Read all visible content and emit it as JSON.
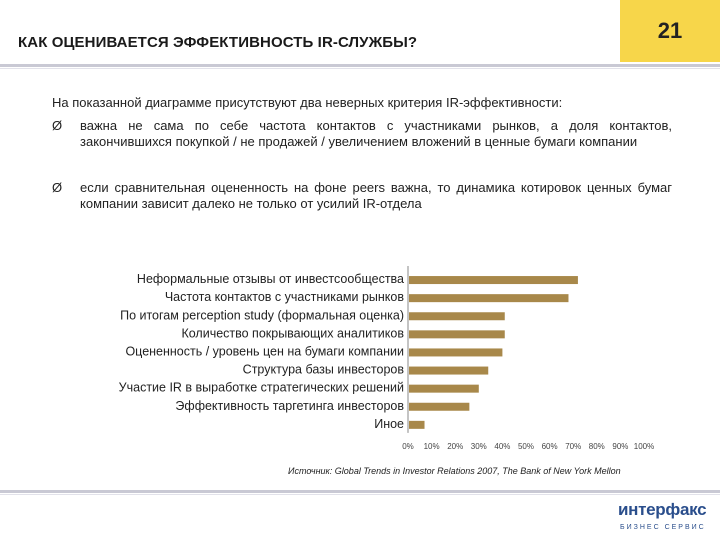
{
  "header": {
    "title": "КАК ОЦЕНИВАЕТСЯ ЭФФЕКТИВНОСТЬ IR-СЛУЖБЫ?",
    "page_number": "21",
    "accent_color": "#f7d64a"
  },
  "intro": "На показанной диаграмме присутствуют два неверных критерия IR-эффективности:",
  "bullets": [
    {
      "marker": "Ø",
      "text": "важна не сама по себе частота контактов с участниками рынков, а доля контактов, закончившихся покупкой / не продажей / увеличением вложений в ценные бумаги компании"
    },
    {
      "marker": "Ø",
      "text": "если сравнительная оцененность на фоне peers важна, то динамика котировок ценных бумаг компании зависит далеко не только от усилий IR-отдела"
    }
  ],
  "chart_data": {
    "type": "bar",
    "orientation": "horizontal",
    "categories": [
      "Неформальные отзывы от инвестсообщества",
      "Частота контактов с участниками рынков",
      "По итогам perception study (формальная оценка)",
      "Количество покрывающих аналитиков",
      "Оцененность / уровень цен на бумаги компании",
      "Структура базы инвесторов",
      "Участие IR в выработке стратегических решений",
      "Эффективность таргетинга инвесторов",
      "Иное"
    ],
    "values": [
      72,
      68,
      41,
      41,
      40,
      34,
      30,
      26,
      7
    ],
    "xlim": [
      0,
      100
    ],
    "x_ticks": [
      "0%",
      "10%",
      "20%",
      "30%",
      "40%",
      "50%",
      "60%",
      "70%",
      "80%",
      "90%",
      "100%"
    ],
    "bar_color": "#a8884a",
    "grid": false,
    "legend": "none"
  },
  "source": "Источник: Global Trends in Investor Relations 2007, The Bank of New York Mellon",
  "logo": {
    "main": "интерфакс",
    "sub": "БИЗНЕС СЕРВИС",
    "color": "#2a4e8c"
  }
}
